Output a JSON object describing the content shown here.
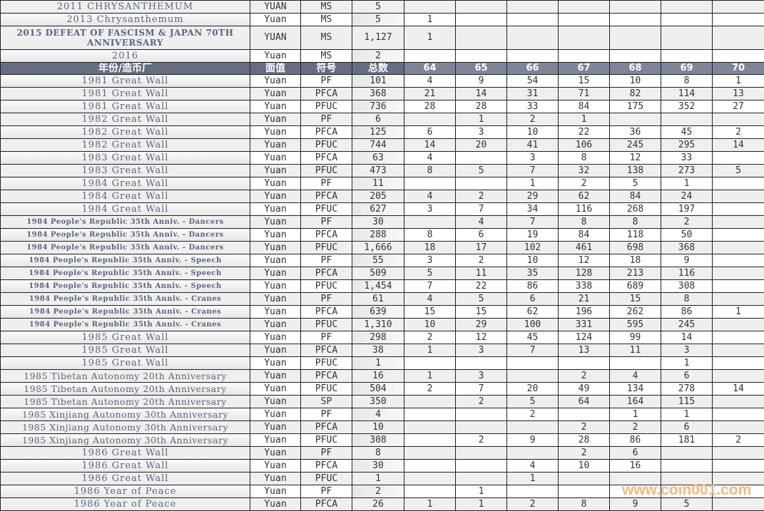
{
  "top_rows": [
    [
      "2011 CHRYSANTHEMUM",
      "YUAN",
      "MS",
      "5",
      "",
      "",
      "",
      "",
      "",
      "",
      ""
    ],
    [
      "2013 Chrysanthemum",
      "Yuan",
      "MS",
      "5",
      "1",
      "",
      "",
      "",
      "",
      "",
      ""
    ],
    [
      "2015 DEFEAT OF FASCISM & JAPAN 70TH ANNIVERSARY",
      "YUAN",
      "MS",
      "1,127",
      "1",
      "",
      "",
      "",
      "",
      "",
      ""
    ],
    [
      "2016",
      "Yuan",
      "MS",
      "2",
      "",
      "",
      "",
      "",
      "",
      "",
      ""
    ]
  ],
  "header": [
    "年份/造币厂",
    "面值",
    "符号",
    "总数",
    "64",
    "65",
    "66",
    "67",
    "68",
    "69",
    "70"
  ],
  "rows": [
    [
      "1981 Great Wall",
      "Yuan",
      "PF",
      "101",
      "4",
      "9",
      "54",
      "15",
      "10",
      "8",
      "1"
    ],
    [
      "1981 Great Wall",
      "Yuan",
      "PFCA",
      "368",
      "21",
      "14",
      "31",
      "71",
      "82",
      "114",
      "13"
    ],
    [
      "1981 Great Wall",
      "Yuan",
      "PFUC",
      "736",
      "28",
      "28",
      "33",
      "84",
      "175",
      "352",
      "27"
    ],
    [
      "1982 Great Wall",
      "Yuan",
      "PF",
      "6",
      "",
      "1",
      "2",
      "1",
      "",
      "",
      ""
    ],
    [
      "1982 Great Wall",
      "Yuan",
      "PFCA",
      "125",
      "6",
      "3",
      "10",
      "22",
      "36",
      "45",
      "2"
    ],
    [
      "1982 Great Wall",
      "Yuan",
      "PFUC",
      "744",
      "14",
      "20",
      "41",
      "106",
      "245",
      "295",
      "14"
    ],
    [
      "1983 Great Wall",
      "Yuan",
      "PFCA",
      "63",
      "4",
      "",
      "3",
      "8",
      "12",
      "33",
      ""
    ],
    [
      "1983 Great Wall",
      "Yuan",
      "PFUC",
      "473",
      "8",
      "5",
      "7",
      "32",
      "138",
      "273",
      "5"
    ],
    [
      "1984 Great Wall",
      "Yuan",
      "PF",
      "11",
      "",
      "",
      "1",
      "2",
      "5",
      "1",
      ""
    ],
    [
      "1984 Great Wall",
      "Yuan",
      "PFCA",
      "205",
      "4",
      "2",
      "29",
      "62",
      "84",
      "24",
      ""
    ],
    [
      "1984 Great Wall",
      "Yuan",
      "PFUC",
      "627",
      "3",
      "7",
      "34",
      "116",
      "268",
      "197",
      ""
    ],
    [
      "1984 People's Republic 35th Anniv. - Dancers",
      "Yuan",
      "PF",
      "30",
      "",
      "4",
      "7",
      "8",
      "8",
      "2",
      ""
    ],
    [
      "1984 People's Republic 35th Anniv. - Dancers",
      "Yuan",
      "PFCA",
      "288",
      "8",
      "6",
      "19",
      "84",
      "118",
      "50",
      ""
    ],
    [
      "1984 People's Republic 35th Anniv. - Dancers",
      "Yuan",
      "PFUC",
      "1,666",
      "18",
      "17",
      "102",
      "461",
      "698",
      "368",
      ""
    ],
    [
      "1984 People's Republic 35th Anniv. - Speech",
      "Yuan",
      "PF",
      "55",
      "3",
      "2",
      "10",
      "12",
      "18",
      "9",
      ""
    ],
    [
      "1984 People's Republic 35th Anniv. - Speech",
      "Yuan",
      "PFCA",
      "509",
      "5",
      "11",
      "35",
      "128",
      "213",
      "116",
      ""
    ],
    [
      "1984 People's Republic 35th Anniv. - Speech",
      "Yuan",
      "PFUC",
      "1,454",
      "7",
      "22",
      "86",
      "338",
      "689",
      "308",
      ""
    ],
    [
      "1984 People's Republic 35th Anniv. - Cranes",
      "Yuan",
      "PF",
      "61",
      "4",
      "5",
      "6",
      "21",
      "15",
      "8",
      ""
    ],
    [
      "1984 People's Republic 35th Anniv. - Cranes",
      "Yuan",
      "PFCA",
      "639",
      "15",
      "15",
      "62",
      "196",
      "262",
      "86",
      "1"
    ],
    [
      "1984 People's Republic 35th Anniv. - Cranes",
      "Yuan",
      "PFUC",
      "1,310",
      "10",
      "29",
      "100",
      "331",
      "595",
      "245",
      ""
    ],
    [
      "1985 Great Wall",
      "Yuan",
      "PF",
      "298",
      "2",
      "12",
      "45",
      "124",
      "99",
      "14",
      ""
    ],
    [
      "1985 Great Wall",
      "Yuan",
      "PFCA",
      "38",
      "1",
      "3",
      "7",
      "13",
      "11",
      "3",
      ""
    ],
    [
      "1985 Great Wall",
      "Yuan",
      "PFUC",
      "1",
      "",
      "",
      "",
      "",
      "",
      "1",
      ""
    ],
    [
      "1985 Tibetan Autonomy 20th Anniversary",
      "Yuan",
      "PFCA",
      "16",
      "1",
      "3",
      "",
      "2",
      "4",
      "6",
      ""
    ],
    [
      "1985 Tibetan Autonomy 20th Anniversary",
      "Yuan",
      "PFUC",
      "504",
      "2",
      "7",
      "20",
      "49",
      "134",
      "278",
      "14"
    ],
    [
      "1985 Tibetan Autonomy 20th Anniversary",
      "Yuan",
      "SP",
      "350",
      "",
      "2",
      "5",
      "64",
      "164",
      "115",
      ""
    ],
    [
      "1985 Xinjiang Autonomy 30th Anniversary",
      "Yuan",
      "PF",
      "4",
      "",
      "",
      "2",
      "",
      "1",
      "1",
      ""
    ],
    [
      "1985 Xinjiang Autonomy 30th Anniversary",
      "Yuan",
      "PFCA",
      "10",
      "",
      "",
      "",
      "2",
      "2",
      "6",
      ""
    ],
    [
      "1985 Xinjiang Autonomy 30th Anniversary",
      "Yuan",
      "PFUC",
      "308",
      "",
      "2",
      "9",
      "28",
      "86",
      "181",
      "2"
    ],
    [
      "1986 Great Wall",
      "Yuan",
      "PF",
      "8",
      "",
      "",
      "",
      "2",
      "6",
      "",
      ""
    ],
    [
      "1986 Great Wall",
      "Yuan",
      "PFCA",
      "30",
      "",
      "",
      "4",
      "10",
      "16",
      "",
      ""
    ],
    [
      "1986 Great Wall",
      "Yuan",
      "PFUC",
      "1",
      "",
      "",
      "1",
      "",
      "",
      "",
      ""
    ],
    [
      "1986 Year of Peace",
      "Yuan",
      "PF",
      "2",
      "",
      "1",
      "",
      "",
      "",
      "",
      ""
    ],
    [
      "1986 Year of Peace",
      "Yuan",
      "PFCA",
      "26",
      "1",
      "1",
      "2",
      "8",
      "9",
      "5",
      ""
    ]
  ],
  "watermark": "www.coin001.com",
  "colors": {
    "header_bg": "#666d82",
    "name_text": "#5b6580",
    "watermark": "#f7b070"
  }
}
